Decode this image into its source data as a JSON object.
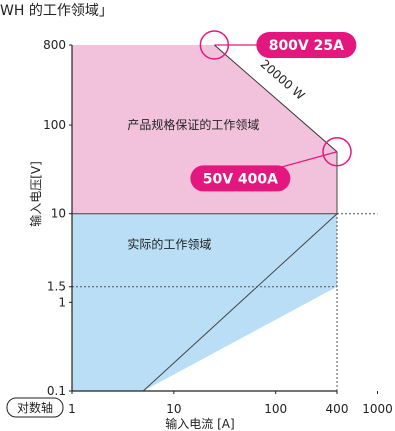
{
  "chart_data": {
    "type": "area",
    "title": "WH 的工作领域」",
    "xlabel": "输入电流 [A]",
    "ylabel": "输入电压[V]",
    "scale_note": "对数轴",
    "x_scale": "log",
    "y_scale": "log",
    "xlim": [
      1,
      1000
    ],
    "ylim": [
      0.1,
      800
    ],
    "x_ticks": [
      {
        "value": 1,
        "label": "1"
      },
      {
        "value": 10,
        "label": "10"
      },
      {
        "value": 100,
        "label": "100"
      },
      {
        "value": 400,
        "label": "400"
      },
      {
        "value": 1000,
        "label": "1000"
      }
    ],
    "y_ticks": [
      {
        "value": 800,
        "label": "800"
      },
      {
        "value": 100,
        "label": "100"
      },
      {
        "value": 10,
        "label": "10"
      },
      {
        "value": 1.5,
        "label": "1.5"
      },
      {
        "value": 1,
        "label": "1"
      },
      {
        "value": 0.1,
        "label": "0.1"
      }
    ],
    "regions": [
      {
        "label": "产品规格保证的工作领域",
        "color": "#f2c2dc",
        "label_at": [
          3.5,
          100
        ],
        "points": [
          [
            1,
            10
          ],
          [
            1,
            800
          ],
          [
            25,
            800
          ],
          [
            400,
            50
          ],
          [
            400,
            10
          ]
        ]
      },
      {
        "label": "实际的工作领域",
        "color": "#b9def5",
        "label_at": [
          3.5,
          4.5
        ],
        "points": [
          [
            1,
            0.1
          ],
          [
            1,
            10
          ],
          [
            400,
            10
          ],
          [
            400,
            1.5
          ],
          [
            5,
            0.1
          ]
        ]
      }
    ],
    "boundary_line": {
      "points": [
        [
          5,
          0.1
        ],
        [
          400,
          10
        ]
      ],
      "color": "#444444"
    },
    "dotted_guides": [
      {
        "points": [
          [
            1,
            1.5
          ],
          [
            400,
            1.5
          ]
        ]
      },
      {
        "points": [
          [
            400,
            0.1
          ],
          [
            400,
            10
          ]
        ]
      },
      {
        "points": [
          [
            400,
            10
          ],
          [
            1000,
            10
          ]
        ]
      }
    ],
    "power_curve": {
      "label": "20000 W",
      "label_at": [
        110,
        300
      ],
      "color": "#333333"
    },
    "callouts": [
      {
        "label": "800V 25A",
        "point": [
          25,
          800
        ],
        "color": "#e4177f",
        "box_at": [
          200,
          800
        ]
      },
      {
        "label": "50V 400A",
        "point": [
          400,
          50
        ],
        "color": "#e4177f",
        "box_at": [
          45,
          25
        ]
      }
    ]
  }
}
